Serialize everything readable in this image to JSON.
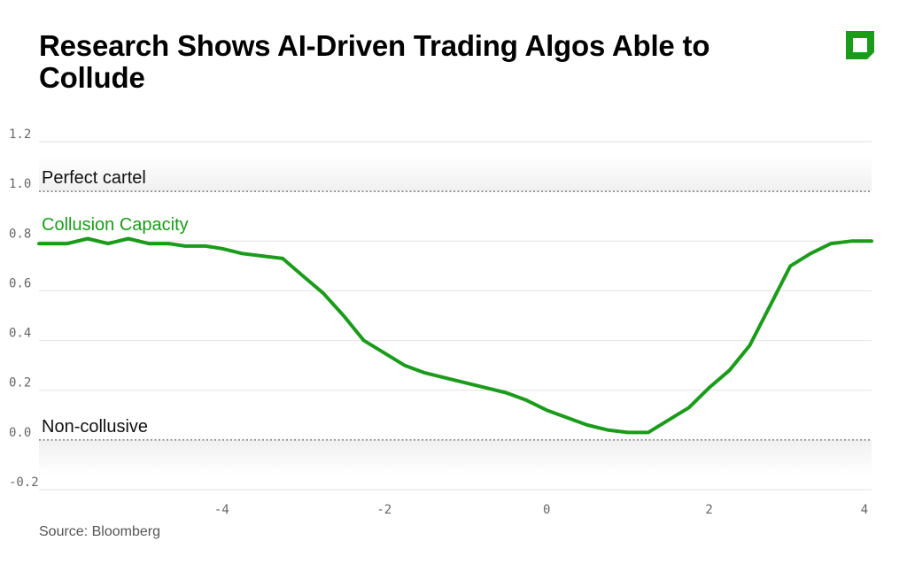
{
  "title": "Research Shows AI-Driven Trading Algos Able to Collude",
  "logo": {
    "icon": "bloomberg-square-icon",
    "color": "#1a9c1a"
  },
  "source": "Source: Bloomberg",
  "chart_data": {
    "type": "line",
    "xlim": [
      -6.25,
      4
    ],
    "ylim": [
      -0.2,
      1.2
    ],
    "xticks": [
      -4,
      -2,
      0,
      2,
      4
    ],
    "xtick_labels": [
      "-4",
      "-2",
      "0",
      "2",
      "4"
    ],
    "yticks": [
      1.2,
      1.0,
      0.8,
      0.6,
      0.4,
      0.2,
      0.0,
      -0.2
    ],
    "ytick_labels": [
      "1.2",
      "1.0",
      "0.8",
      "0.6",
      "0.4",
      "0.2",
      "0.0",
      "-0.2"
    ],
    "grid": true,
    "reference_lines": [
      {
        "label": "Perfect cartel",
        "y": 1.0
      },
      {
        "label": "Non-collusive",
        "y": 0.0
      }
    ],
    "series": [
      {
        "name": "Collusion Capacity",
        "color": "#1a9c1a",
        "x": [
          -6.25,
          -5.9,
          -5.65,
          -5.4,
          -5.15,
          -4.9,
          -4.65,
          -4.45,
          -4.2,
          -4.0,
          -3.75,
          -3.5,
          -3.25,
          -3.0,
          -2.75,
          -2.5,
          -2.25,
          -2.0,
          -1.75,
          -1.5,
          -1.25,
          -1.0,
          -0.75,
          -0.5,
          -0.25,
          0.0,
          0.25,
          0.5,
          0.75,
          1.0,
          1.25,
          1.5,
          1.75,
          2.0,
          2.25,
          2.5,
          2.75,
          3.0,
          3.25,
          3.5,
          3.75,
          4.0
        ],
        "y": [
          0.79,
          0.79,
          0.81,
          0.79,
          0.81,
          0.79,
          0.79,
          0.78,
          0.78,
          0.77,
          0.75,
          0.74,
          0.73,
          0.66,
          0.59,
          0.5,
          0.4,
          0.35,
          0.3,
          0.27,
          0.25,
          0.23,
          0.21,
          0.19,
          0.16,
          0.12,
          0.09,
          0.06,
          0.04,
          0.03,
          0.03,
          0.08,
          0.13,
          0.21,
          0.28,
          0.38,
          0.54,
          0.7,
          0.75,
          0.79,
          0.8,
          0.8
        ]
      }
    ]
  }
}
